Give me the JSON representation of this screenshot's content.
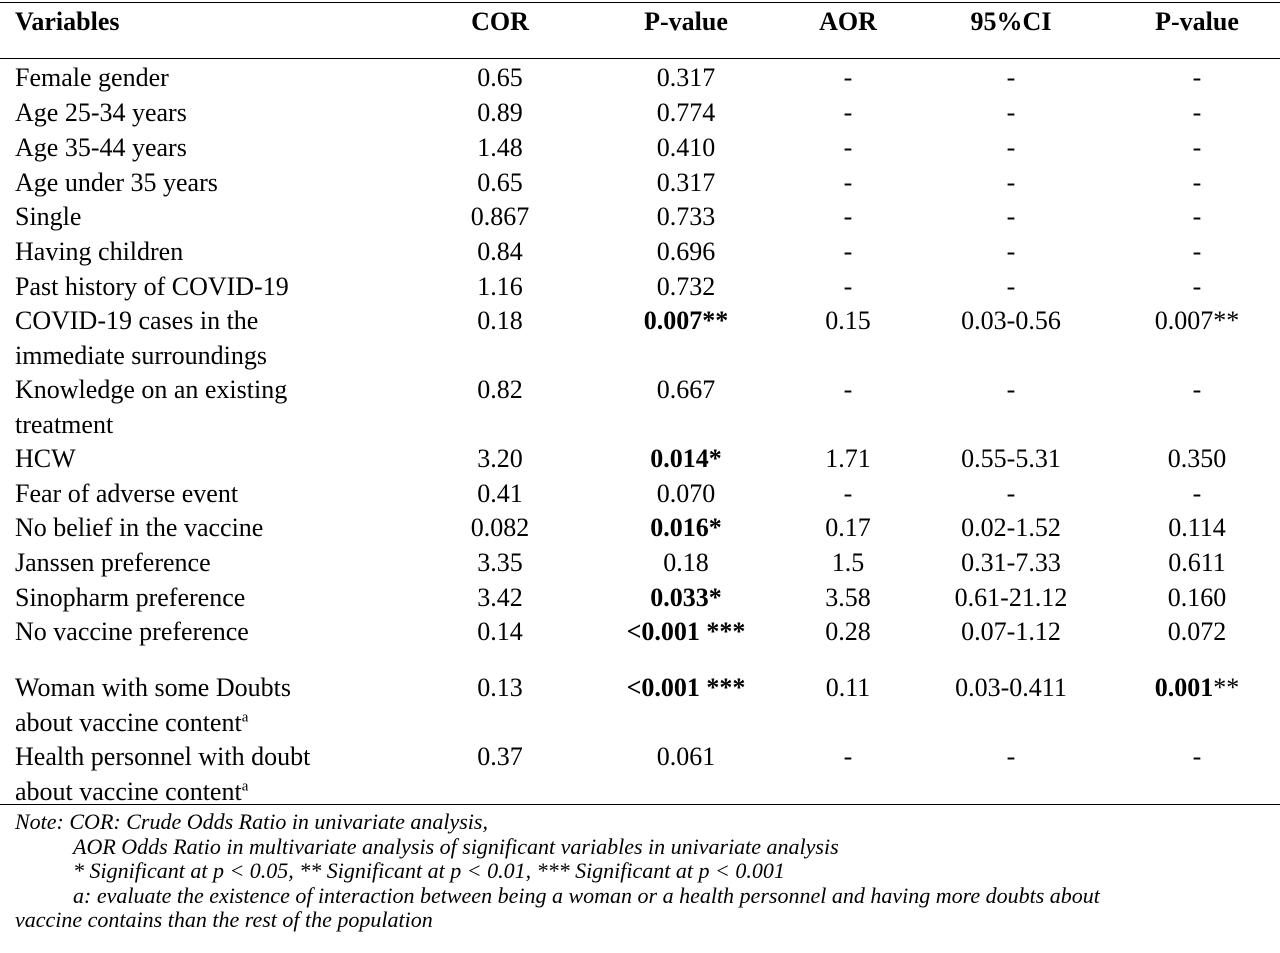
{
  "table": {
    "headers": [
      "Variables",
      "COR",
      "P-value",
      "AOR",
      "95%CI",
      "P-value"
    ],
    "rows": [
      {
        "variable": [
          "Female gender"
        ],
        "cor": "0.65",
        "p1": "0.317",
        "p1_bold": "",
        "p1_suffix": "",
        "aor": "-",
        "ci": "-",
        "p2": "-",
        "p2_bold": "",
        "p2_suffix": ""
      },
      {
        "variable": [
          "Age 25-34 years"
        ],
        "cor": "0.89",
        "p1": "0.774",
        "p1_bold": "",
        "p1_suffix": "",
        "aor": "-",
        "ci": "-",
        "p2": "-",
        "p2_bold": "",
        "p2_suffix": ""
      },
      {
        "variable": [
          "Age 35-44 years"
        ],
        "cor": "1.48",
        "p1": "0.410",
        "p1_bold": "",
        "p1_suffix": "",
        "aor": "-",
        "ci": "-",
        "p2": "-",
        "p2_bold": "",
        "p2_suffix": ""
      },
      {
        "variable": [
          "Age under 35 years"
        ],
        "cor": "0.65",
        "p1": "0.317",
        "p1_bold": "",
        "p1_suffix": "",
        "aor": "-",
        "ci": "-",
        "p2": "-",
        "p2_bold": "",
        "p2_suffix": ""
      },
      {
        "variable": [
          "Single"
        ],
        "cor": "0.867",
        "p1": "0.733",
        "p1_bold": "",
        "p1_suffix": "",
        "aor": "-",
        "ci": "-",
        "p2": "-",
        "p2_bold": "",
        "p2_suffix": ""
      },
      {
        "variable": [
          "Having children"
        ],
        "cor": "0.84",
        "p1": "0.696",
        "p1_bold": "",
        "p1_suffix": "",
        "aor": "-",
        "ci": "-",
        "p2": "-",
        "p2_bold": "",
        "p2_suffix": ""
      },
      {
        "variable": [
          "Past history of COVID-19"
        ],
        "cor": "1.16",
        "p1": "0.732",
        "p1_bold": "",
        "p1_suffix": "",
        "aor": "-",
        "ci": "-",
        "p2": "-",
        "p2_bold": "",
        "p2_suffix": ""
      },
      {
        "variable": [
          "COVID-19 cases in the",
          "immediate surroundings"
        ],
        "cor": "0.18",
        "p1": "",
        "p1_bold": "0.007**",
        "p1_suffix": "",
        "aor": "0.15",
        "ci": "0.03-0.56",
        "p2": "0.007**",
        "p2_bold": "",
        "p2_suffix": ""
      },
      {
        "variable": [
          "Knowledge on an existing",
          "treatment"
        ],
        "cor": "0.82",
        "p1": "0.667",
        "p1_bold": "",
        "p1_suffix": "",
        "aor": "-",
        "ci": "-",
        "p2": "-",
        "p2_bold": "",
        "p2_suffix": ""
      },
      {
        "variable": [
          "HCW"
        ],
        "cor": "3.20",
        "p1": "",
        "p1_bold": "0.014*",
        "p1_suffix": "",
        "aor": "1.71",
        "ci": "0.55-5.31",
        "p2": "0.350",
        "p2_bold": "",
        "p2_suffix": ""
      },
      {
        "variable": [
          "Fear of adverse event"
        ],
        "cor": "0.41",
        "p1": "0.070",
        "p1_bold": "",
        "p1_suffix": "",
        "aor": "-",
        "ci": "-",
        "p2": "-",
        "p2_bold": "",
        "p2_suffix": ""
      },
      {
        "variable": [
          "No belief in the vaccine"
        ],
        "cor": "0.082",
        "p1": "",
        "p1_bold": "0.016*",
        "p1_suffix": "",
        "aor": "0.17",
        "ci": "0.02-1.52",
        "p2": "0.114",
        "p2_bold": "",
        "p2_suffix": ""
      },
      {
        "variable": [
          "Janssen preference"
        ],
        "cor": "3.35",
        "p1": "0.18",
        "p1_bold": "",
        "p1_suffix": "",
        "aor": "1.5",
        "ci": "0.31-7.33",
        "p2": "0.611",
        "p2_bold": "",
        "p2_suffix": ""
      },
      {
        "variable": [
          "Sinopharm preference"
        ],
        "cor": "3.42",
        "p1": "",
        "p1_bold": "0.033*",
        "p1_suffix": "",
        "aor": "3.58",
        "ci": "0.61-21.12",
        "p2": "0.160",
        "p2_bold": "",
        "p2_suffix": ""
      },
      {
        "variable": [
          "No vaccine preference"
        ],
        "cor": "0.14",
        "p1": "",
        "p1_bold": "<0.001 ***",
        "p1_suffix": "",
        "aor": "0.28",
        "ci": "0.07-1.12",
        "p2": "0.072",
        "p2_bold": "",
        "p2_suffix": ""
      },
      {
        "variable": [
          "Woman with some Doubts",
          "about vaccine content"
        ],
        "sup": "a",
        "cor": "0.13",
        "p1": "",
        "p1_bold": "<0.001 ***",
        "p1_suffix": "",
        "aor": "0.11",
        "ci": "0.03-0.411",
        "p2": "",
        "p2_bold": "0.001",
        "p2_suffix": "**"
      },
      {
        "variable": [
          "Health personnel with doubt",
          "about vaccine content"
        ],
        "sup": "a",
        "cor": "0.37",
        "p1": "0.061",
        "p1_bold": "",
        "p1_suffix": "",
        "aor": "-",
        "ci": "-",
        "p2": "-",
        "p2_bold": "",
        "p2_suffix": ""
      }
    ]
  },
  "notes": [
    "Note: COR: Crude Odds Ratio in univariate analysis,",
    "AOR Odds Ratio in multivariate analysis of significant variables in univariate analysis",
    "* Significant at p < 0.05, ** Significant at p < 0.01, *** Significant at p < 0.001",
    "a: evaluate the existence of interaction between being a woman or a health personnel and having more doubts about",
    "vaccine contains than the rest of the population"
  ]
}
